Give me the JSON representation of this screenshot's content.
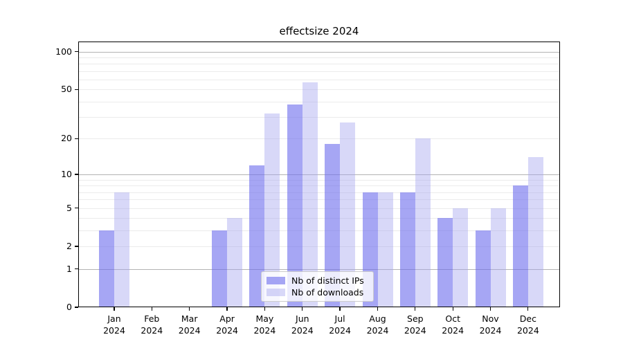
{
  "title": "effectsize 2024",
  "chart_data": {
    "type": "bar",
    "title": "effectsize 2024",
    "yscale": "log1p",
    "categories": [
      "Jan",
      "Feb",
      "Mar",
      "Apr",
      "May",
      "Jun",
      "Jul",
      "Aug",
      "Sep",
      "Oct",
      "Nov",
      "Dec"
    ],
    "year": "2024",
    "series": [
      {
        "name": "Nb of distinct IPs",
        "color": "#6a6aec",
        "alpha": 0.6,
        "values": [
          3,
          0,
          0,
          3,
          12,
          38,
          18,
          7,
          7,
          4,
          3,
          8
        ]
      },
      {
        "name": "Nb of downloads",
        "color": "#a2a2ee",
        "alpha": 0.42,
        "values": [
          7,
          0,
          0,
          4,
          32,
          57,
          27,
          7,
          20,
          5,
          5,
          14
        ]
      }
    ],
    "ylim": [
      0,
      120
    ],
    "yticks": [
      0,
      1,
      2,
      5,
      10,
      20,
      50,
      100
    ],
    "ytick_labels": [
      "0",
      "1",
      "2",
      "5",
      "10",
      "20",
      "50",
      "100"
    ],
    "gridlines_major": [
      1,
      10,
      100
    ],
    "gridlines_minor": [
      2,
      3,
      4,
      5,
      6,
      7,
      8,
      9,
      20,
      30,
      40,
      50,
      60,
      70,
      80,
      90
    ],
    "grid": "on",
    "legend_position": "lower center",
    "colors": {
      "grid_major": "#b3b3b3",
      "grid_minor": "#ebebeb",
      "axes": "#000000"
    }
  }
}
